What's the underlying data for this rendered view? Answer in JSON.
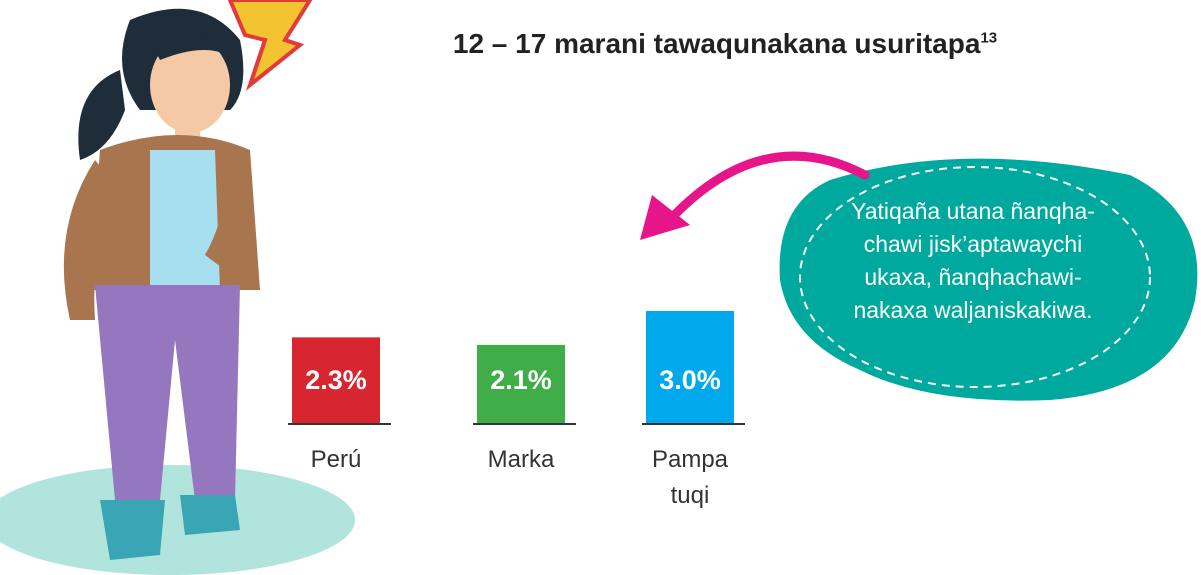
{
  "chart_data": {
    "type": "bar",
    "title": "12 – 17 marani tawaqunakana usuritapa",
    "title_footnote": "13",
    "categories": [
      "Perú",
      "Marka",
      "Pampa tuqi"
    ],
    "values": [
      2.3,
      2.1,
      3.0
    ],
    "value_labels": [
      "2.3%",
      "2.1%",
      "3.0%"
    ],
    "colors": [
      "#d7262f",
      "#3fae49",
      "#00a9ec"
    ],
    "annotation": [
      "Yatiqaña utana ñanqha-",
      "chawi jisk’aptawaychi",
      "ukaxa, ñanqhachawi-",
      "nakaxa waljaniskakiwa."
    ]
  }
}
